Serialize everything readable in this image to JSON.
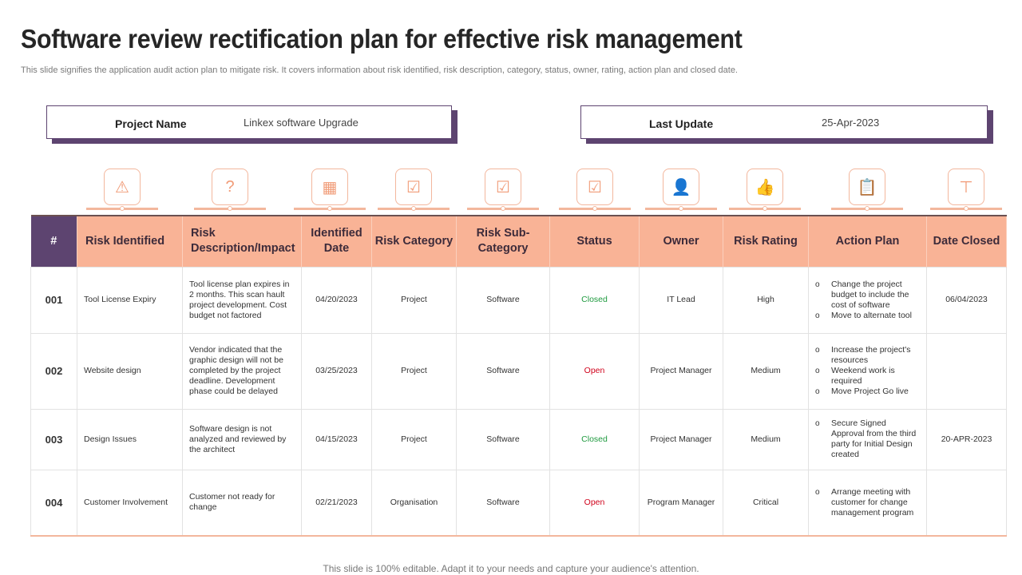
{
  "title": "Software review rectification plan for effective risk management",
  "subtitle": "This slide signifies the application audit action plan to mitigate risk. It covers information about risk identified, risk description, category, status, owner, rating, action plan and closed date.",
  "project": {
    "label": "Project Name",
    "value": "Linkex software Upgrade"
  },
  "update": {
    "label": "Last Update",
    "value": "25-Apr-2023"
  },
  "colors": {
    "accent": "#f9b396",
    "purple": "#5d4470",
    "closed": "#1f9a3f",
    "open": "#d0021b"
  },
  "icons": [
    "monitor-warning-icon",
    "question-orbit-icon",
    "calendar-search-icon",
    "clipboard-check-icon",
    "clipboard-check-icon",
    "clipboard-check-icon",
    "person-icon",
    "rating-thumbs-up-icon",
    "clipboard-document-icon",
    "hierarchy-icon"
  ],
  "headers": [
    "#",
    "Risk Identified",
    "Risk Description/Impact",
    "Identified Date",
    "Risk Category",
    "Risk Sub-Category",
    "Status",
    "Owner",
    "Risk Rating",
    "Action Plan",
    "Date Closed"
  ],
  "rows": [
    {
      "num": "001",
      "risk": "Tool License Expiry",
      "desc": "Tool license plan expires in 2 months. This scan hault project development. Cost budget not factored",
      "date": "04/20/2023",
      "cat": "Project",
      "sub": "Software",
      "status": "Closed",
      "owner": "IT Lead",
      "rating": "High",
      "plan": [
        "Change the project budget to include the cost of software",
        "Move to alternate tool"
      ],
      "closed": "06/04/2023"
    },
    {
      "num": "002",
      "risk": "Website design",
      "desc": "Vendor indicated that the graphic design will not be completed by the project deadline. Development phase could be delayed",
      "date": "03/25/2023",
      "cat": "Project",
      "sub": "Software",
      "status": "Open",
      "owner": "Project Manager",
      "rating": "Medium",
      "plan": [
        "Increase the project's resources",
        "Weekend work is required",
        "Move Project Go live"
      ],
      "closed": ""
    },
    {
      "num": "003",
      "risk": "Design Issues",
      "desc": "Software design is not analyzed and reviewed by the architect",
      "date": "04/15/2023",
      "cat": "Project",
      "sub": "Software",
      "status": "Closed",
      "owner": "Project Manager",
      "rating": "Medium",
      "plan": [
        "Secure Signed Approval from the third party for Initial Design created"
      ],
      "closed": "20-APR-2023"
    },
    {
      "num": "004",
      "risk": "Customer Involvement",
      "desc": "Customer not ready for change",
      "date": "02/21/2023",
      "cat": "Organisation",
      "sub": "Software",
      "status": "Open",
      "owner": "Program Manager",
      "rating": "Critical",
      "plan": [
        "Arrange meeting with customer for change management program"
      ],
      "closed": ""
    }
  ],
  "footer": "This slide is 100% editable. Adapt it to your needs and capture your audience's attention."
}
